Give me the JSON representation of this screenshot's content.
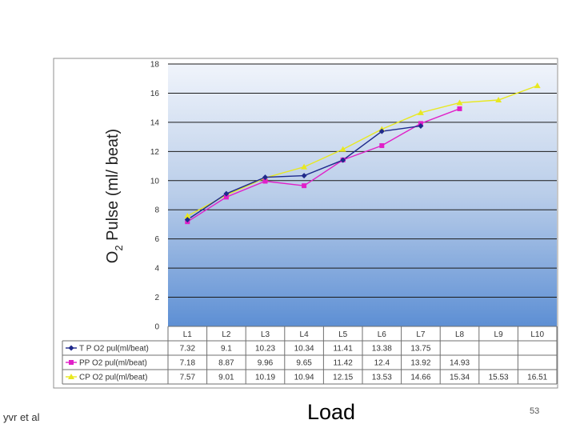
{
  "chart_data": {
    "type": "line",
    "ylabel_main": "O",
    "ylabel_sub": "2",
    "ylabel_rest": " Pulse  (ml/ beat)",
    "xlabel": "Load",
    "ylim": [
      0,
      18
    ],
    "yticks": [
      0,
      2,
      4,
      6,
      8,
      10,
      12,
      14,
      16,
      18
    ],
    "grid": true,
    "legend": "table-bottom",
    "categories": [
      "L1",
      "L2",
      "L3",
      "L4",
      "L5",
      "L6",
      "L7",
      "L8",
      "L9",
      "L10"
    ],
    "series": [
      {
        "name": "T P O2 pul(ml/beat)",
        "color": "#1f2a8c",
        "marker": "diamond",
        "values": [
          7.32,
          9.1,
          10.23,
          10.34,
          11.41,
          13.38,
          13.75,
          null,
          null,
          null
        ],
        "labels": [
          "7.32",
          "9.1",
          "10.23",
          "10.34",
          "11.41",
          "13.38",
          "13.75",
          "",
          "",
          ""
        ]
      },
      {
        "name": "PP O2 pul(ml/beat)",
        "color": "#e020c8",
        "marker": "square",
        "values": [
          7.18,
          8.87,
          9.96,
          9.65,
          11.42,
          12.4,
          13.92,
          14.93,
          null,
          null
        ],
        "labels": [
          "7.18",
          "8.87",
          "9.96",
          "9.65",
          "11.42",
          "12.4",
          "13.92",
          "14.93",
          "",
          ""
        ]
      },
      {
        "name": "CP O2 pul(ml/beat)",
        "color": "#e8e820",
        "marker": "triangle",
        "values": [
          7.57,
          9.01,
          10.19,
          10.94,
          12.15,
          13.53,
          14.66,
          15.34,
          15.53,
          16.51
        ],
        "labels": [
          "7.57",
          "9.01",
          "10.19",
          "10.94",
          "12.15",
          "13.53",
          "14.66",
          "15.34",
          "15.53",
          "16.51"
        ]
      }
    ]
  },
  "footer": {
    "author": "yvr et al",
    "xaxis_title": "Load",
    "page_number": "53"
  }
}
